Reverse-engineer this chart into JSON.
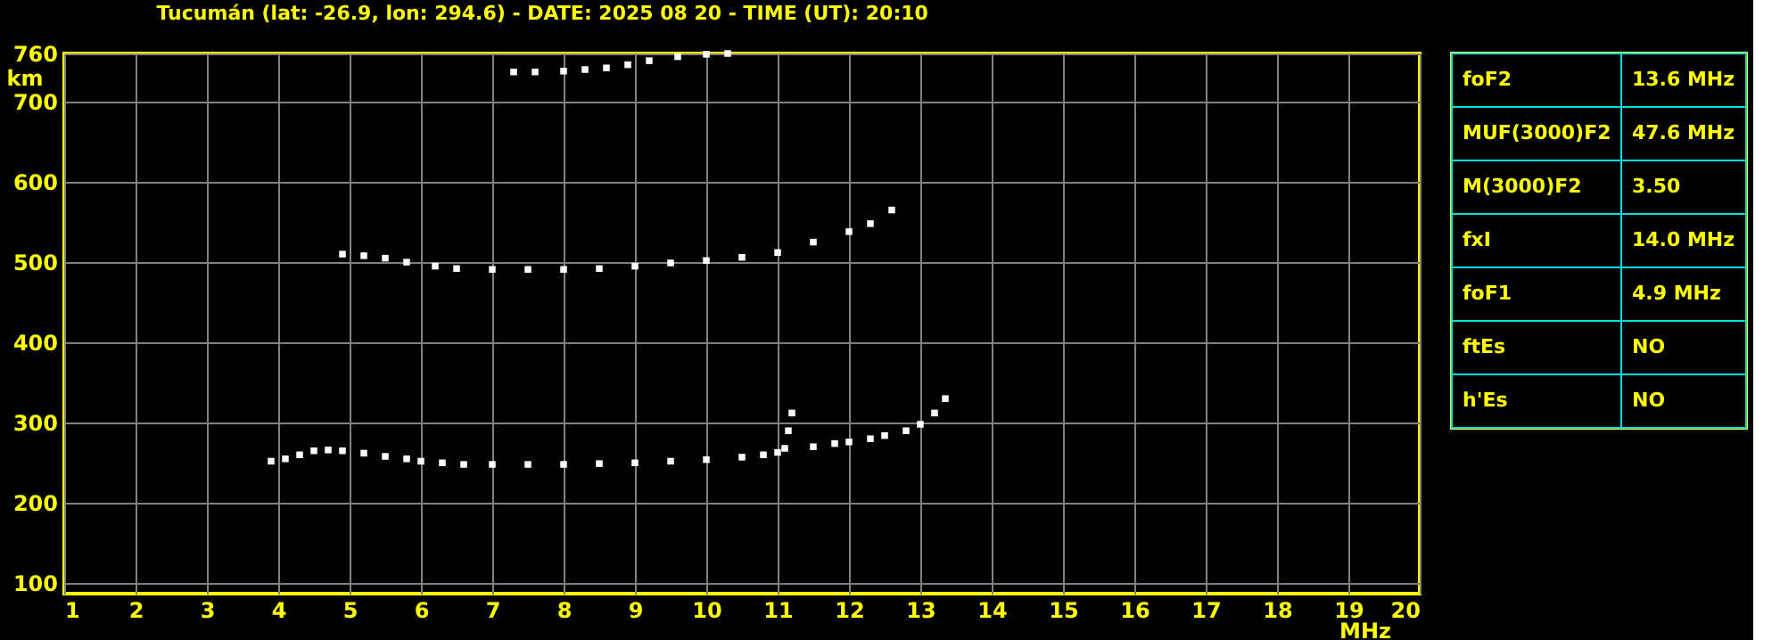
{
  "chart_data": [
    {
      "type": "scatter",
      "title": "Tucumán (lat: -26.9, lon: 294.6) - DATE: 2025 08 20 - TIME (UT): 20:10",
      "xlabel": "MHz",
      "ylabel": "km",
      "marker": "square",
      "grid": true,
      "xlim": [
        1,
        20
      ],
      "xticks": [
        1,
        2,
        3,
        4,
        5,
        6,
        7,
        8,
        9,
        10,
        11,
        12,
        13,
        14,
        15,
        16,
        17,
        18,
        19,
        20
      ],
      "ylim": [
        87,
        760
      ],
      "yticks": [
        100,
        200,
        300,
        400,
        500,
        600,
        700,
        760
      ],
      "series": [
        {
          "color": "#ffffff",
          "x": [
            3.9,
            4.1,
            4.3,
            4.5,
            4.7,
            4.9,
            5.2,
            5.5,
            5.8,
            6.0,
            6.3,
            6.6,
            7.0,
            7.5,
            8.0,
            8.5,
            9.0,
            9.5,
            10.0,
            10.5,
            10.8,
            11.0,
            11.1,
            11.15,
            11.2,
            11.5,
            11.8,
            12.0,
            12.3,
            12.5,
            12.8,
            13.0,
            13.2,
            13.35
          ],
          "values": [
            252,
            255,
            260,
            265,
            266,
            265,
            262,
            258,
            255,
            252,
            250,
            248,
            248,
            248,
            248,
            249,
            250,
            252,
            254,
            257,
            260,
            263,
            268,
            290,
            312,
            270,
            274,
            276,
            280,
            284,
            290,
            298,
            312,
            330
          ]
        },
        {
          "color": "#ffffff",
          "x": [
            4.9,
            5.2,
            5.5,
            5.8,
            6.2,
            6.5,
            7.0,
            7.5,
            8.0,
            8.5,
            9.0,
            9.5,
            10.0,
            10.5,
            11.0,
            11.5,
            12.0,
            12.3,
            12.6
          ],
          "values": [
            510,
            508,
            505,
            500,
            495,
            492,
            491,
            491,
            491,
            492,
            495,
            499,
            502,
            506,
            512,
            525,
            538,
            548,
            565
          ]
        },
        {
          "color": "#ffffff",
          "x": [
            7.3,
            7.6,
            8.0,
            8.3,
            8.6,
            8.9,
            9.2,
            9.6,
            10.0,
            10.3
          ],
          "values": [
            737,
            737,
            738,
            740,
            742,
            746,
            751,
            756,
            759,
            760
          ]
        }
      ]
    },
    {
      "type": "other",
      "annotations": [
        "foF2",
        "13.6 MHz",
        "MUF(3000)F2",
        "47.6 MHz",
        "M(3000)F2",
        "3.50",
        "fxI",
        "14.0 MHz",
        "foF1",
        "4.9 MHz",
        "ftEs",
        "NO",
        "h'Es",
        "NO"
      ]
    }
  ]
}
